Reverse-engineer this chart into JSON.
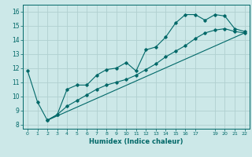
{
  "xlabel": "Humidex (Indice chaleur)",
  "bg_color": "#cce8e8",
  "grid_color": "#b0d0d0",
  "line_color": "#006868",
  "xlim": [
    -0.5,
    22.5
  ],
  "ylim": [
    7.7,
    16.5
  ],
  "xticks": [
    0,
    1,
    2,
    3,
    4,
    5,
    6,
    7,
    8,
    9,
    10,
    11,
    12,
    13,
    14,
    15,
    16,
    17,
    19,
    20,
    21,
    22
  ],
  "yticks": [
    8,
    9,
    10,
    11,
    12,
    13,
    14,
    15,
    16
  ],
  "line1_x": [
    0,
    1,
    2,
    3,
    4,
    5,
    6,
    7,
    8,
    9,
    10,
    11,
    12,
    13,
    14,
    15,
    16,
    17,
    18,
    19,
    20,
    21,
    22
  ],
  "line1_y": [
    11.8,
    9.6,
    8.3,
    8.7,
    10.5,
    10.8,
    10.8,
    11.5,
    11.9,
    12.0,
    12.4,
    11.8,
    13.3,
    13.5,
    14.2,
    15.2,
    15.8,
    15.8,
    15.4,
    15.8,
    15.7,
    14.8,
    14.6
  ],
  "line2_x": [
    2,
    3,
    4,
    5,
    6,
    7,
    8,
    9,
    10,
    11,
    12,
    13,
    14,
    15,
    16,
    17,
    18,
    19,
    20,
    21,
    22
  ],
  "line2_y": [
    8.3,
    8.7,
    9.3,
    9.7,
    10.1,
    10.5,
    10.8,
    11.0,
    11.2,
    11.5,
    11.9,
    12.3,
    12.8,
    13.2,
    13.6,
    14.1,
    14.5,
    14.7,
    14.8,
    14.6,
    14.5
  ],
  "line3_x": [
    2,
    22
  ],
  "line3_y": [
    8.3,
    14.5
  ]
}
